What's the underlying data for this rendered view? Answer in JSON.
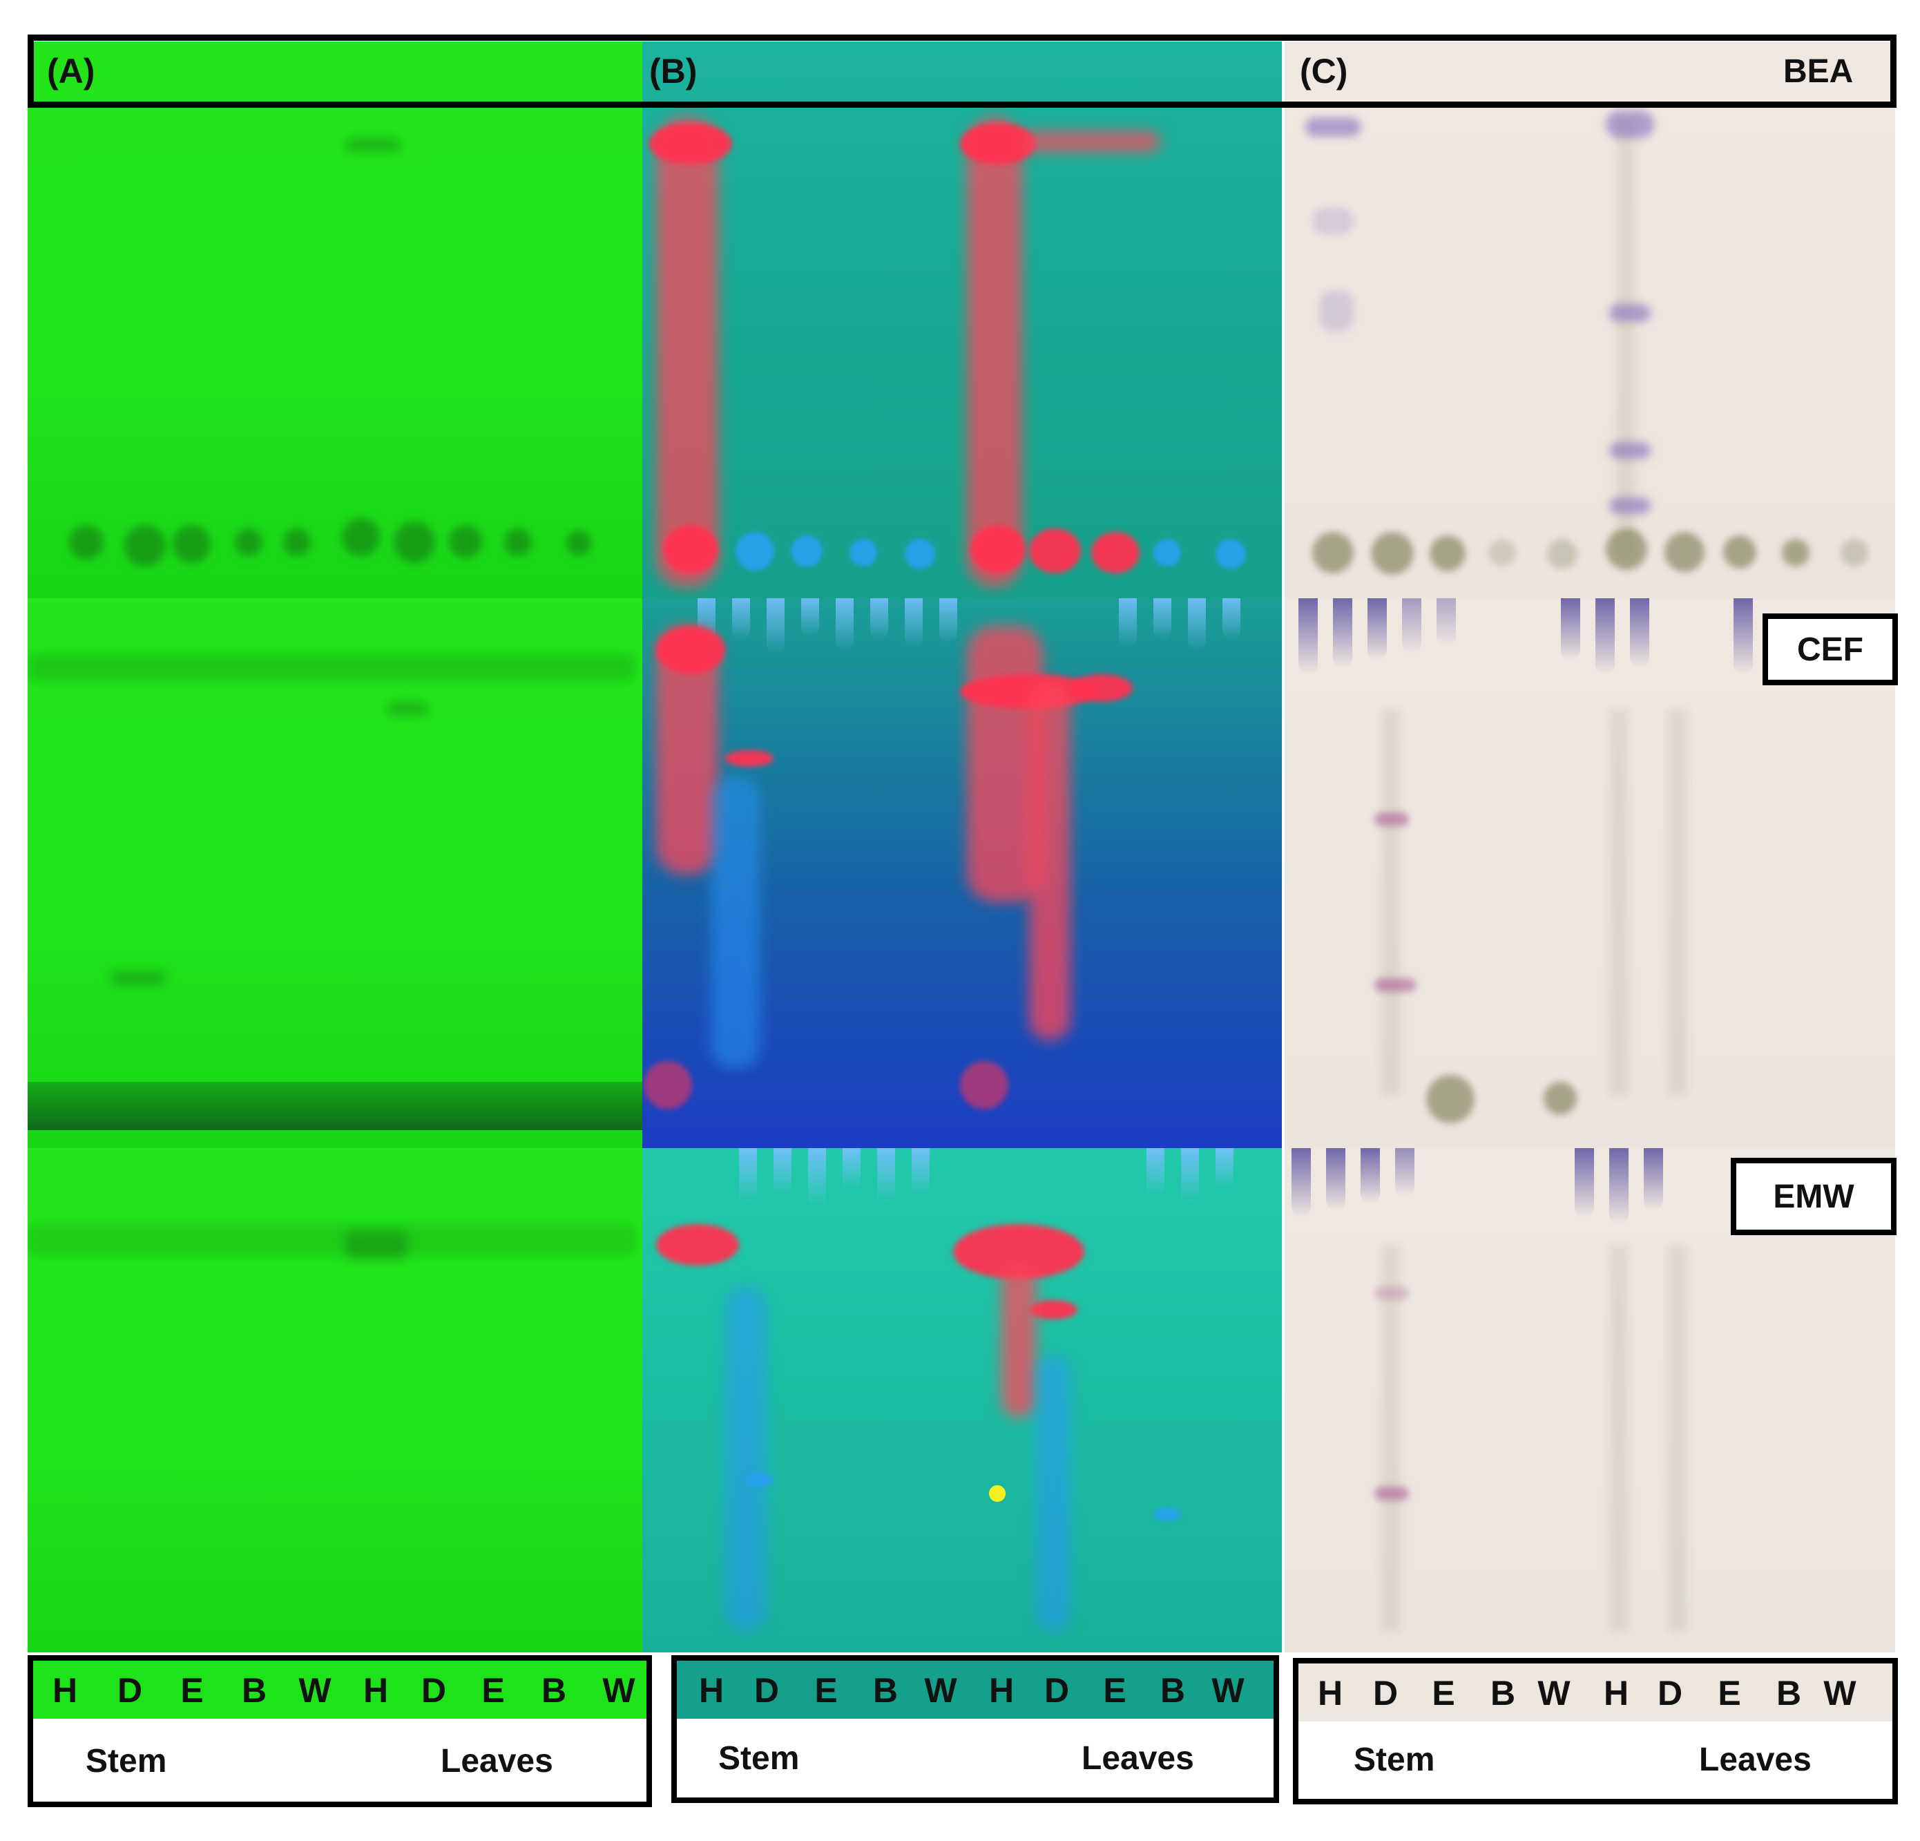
{
  "panels": {
    "a": "(A)",
    "b": "(B)",
    "c": "(C)"
  },
  "systems": {
    "bea": "BEA",
    "cef": "CEF",
    "emw": "EMW"
  },
  "legend": {
    "lanes": [
      "H",
      "D",
      "E",
      "B",
      "W",
      "H",
      "D",
      "E",
      "B",
      "W"
    ],
    "stem": "Stem",
    "leaves": "Leaves"
  },
  "colors": {
    "uv254": "#1ee31a",
    "uv365_teal": "#14a08a",
    "uv365_blue": "#1c3cc4",
    "vanillin_bg": "#ece6df",
    "border": "#000000"
  }
}
